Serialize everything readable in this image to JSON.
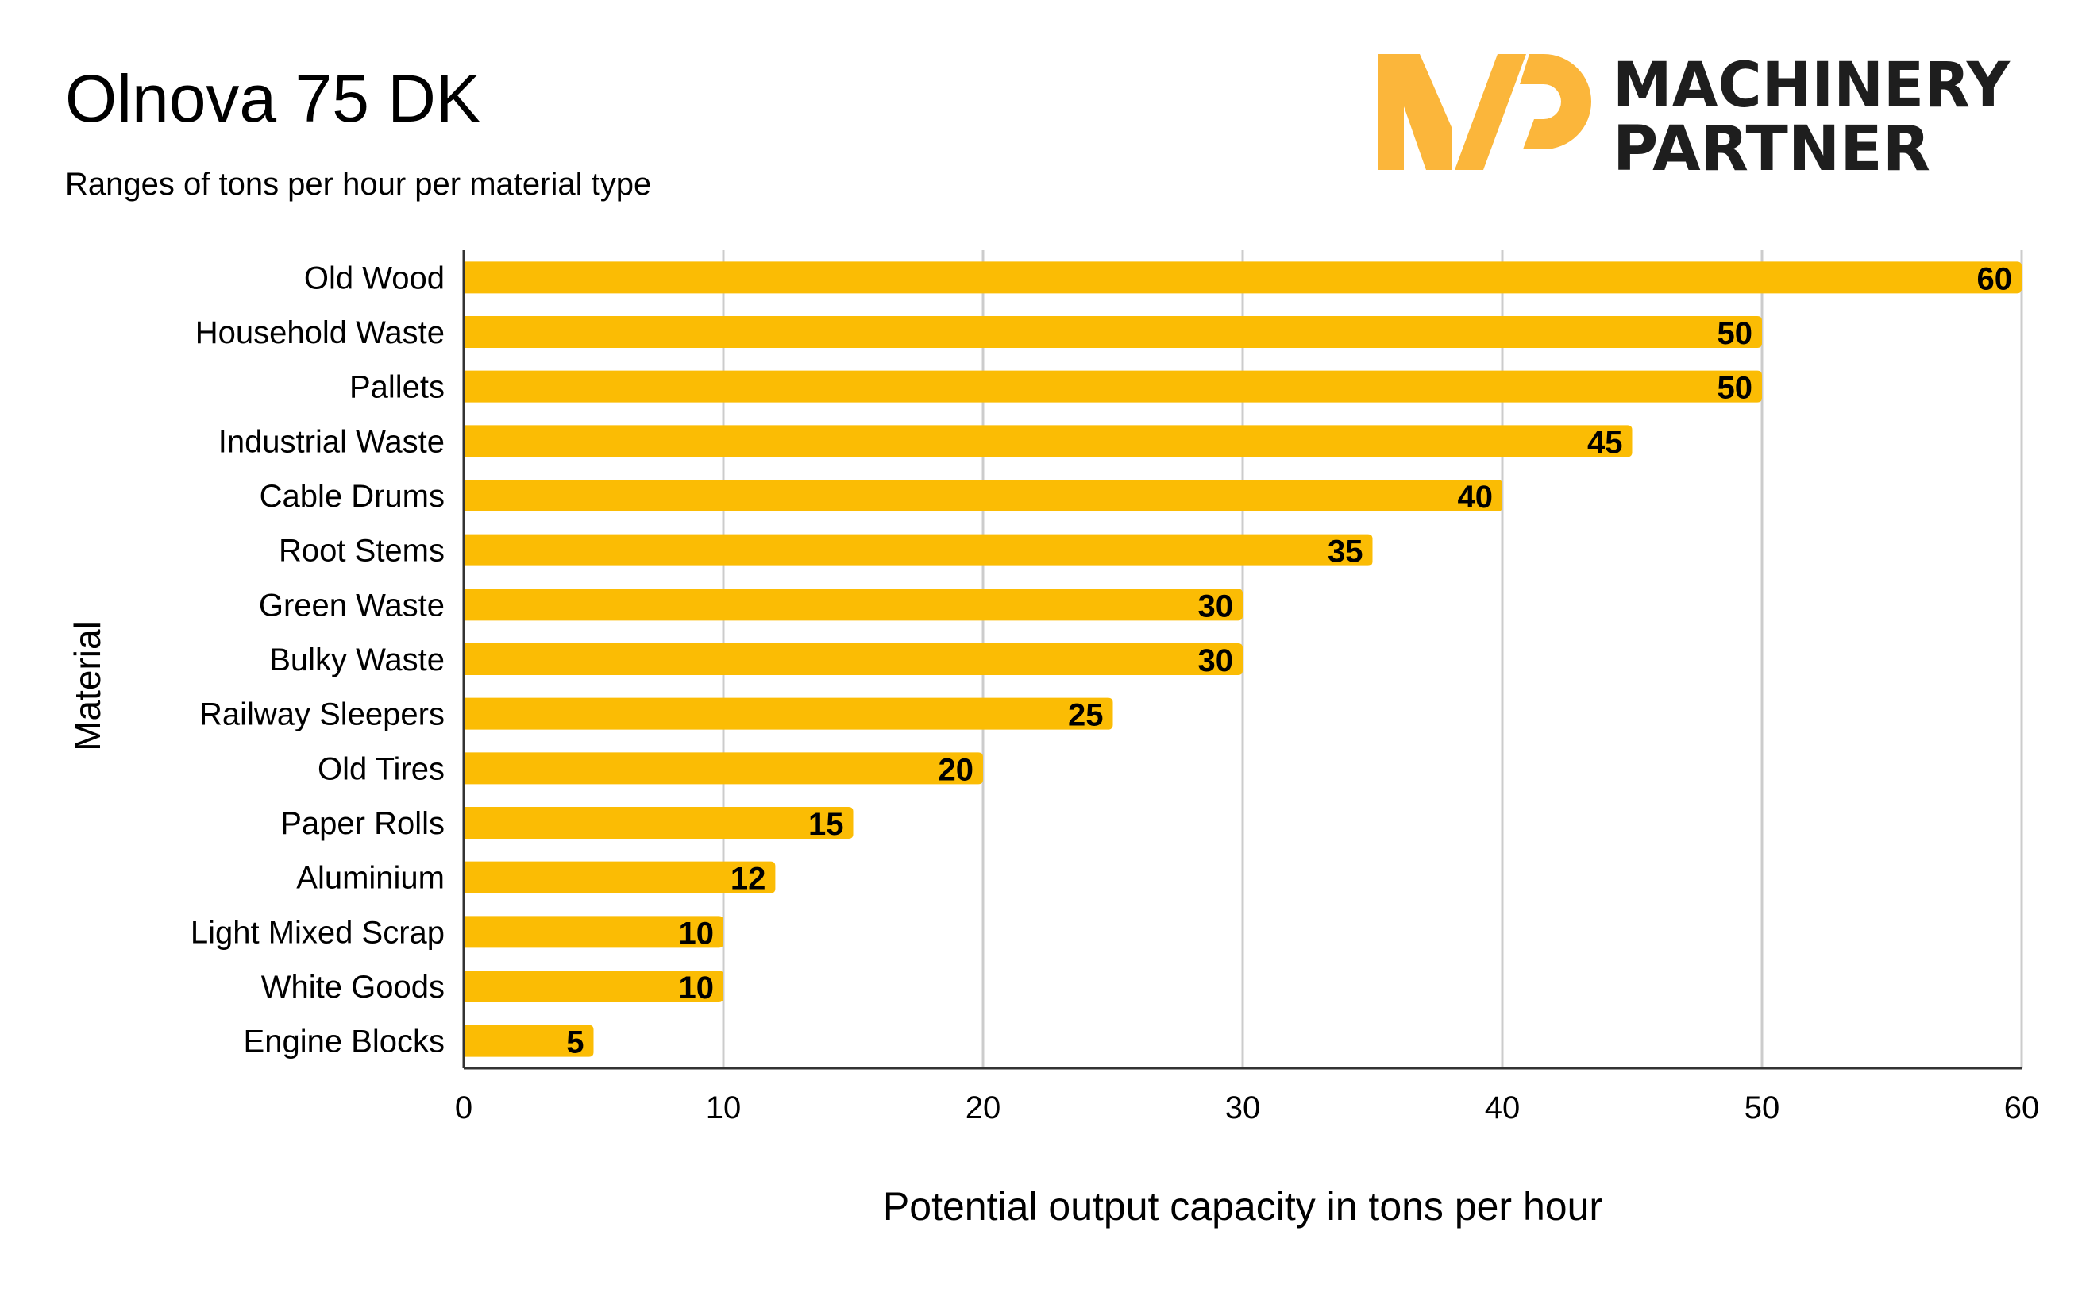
{
  "chart_data": {
    "type": "bar",
    "orientation": "horizontal",
    "title": "Olnova 75 DK",
    "subtitle": "Ranges of tons per hour per material type",
    "xlabel": "Potential output capacity in tons per hour",
    "ylabel": "Material",
    "xlim": [
      0,
      60
    ],
    "xticks": [
      0,
      10,
      20,
      30,
      40,
      50,
      60
    ],
    "grid": true,
    "legend": "none",
    "bar_color": "#FBBC04",
    "categories": [
      "Old Wood",
      "Household Waste",
      "Pallets",
      "Industrial Waste",
      "Cable Drums",
      "Root Stems",
      "Green Waste",
      "Bulky Waste",
      "Railway Sleepers",
      "Old Tires",
      "Paper Rolls",
      "Aluminium",
      "Light Mixed Scrap",
      "White Goods",
      "Engine Blocks"
    ],
    "values": [
      60,
      50,
      50,
      45,
      40,
      35,
      30,
      30,
      25,
      20,
      15,
      12,
      10,
      10,
      5
    ],
    "data_labels": true
  },
  "logo": {
    "text_line1": "MACHINERY",
    "text_line2": "PARTNER",
    "mark": "MP",
    "accent_color": "#FBB63B",
    "text_color": "#1E1E1E"
  }
}
